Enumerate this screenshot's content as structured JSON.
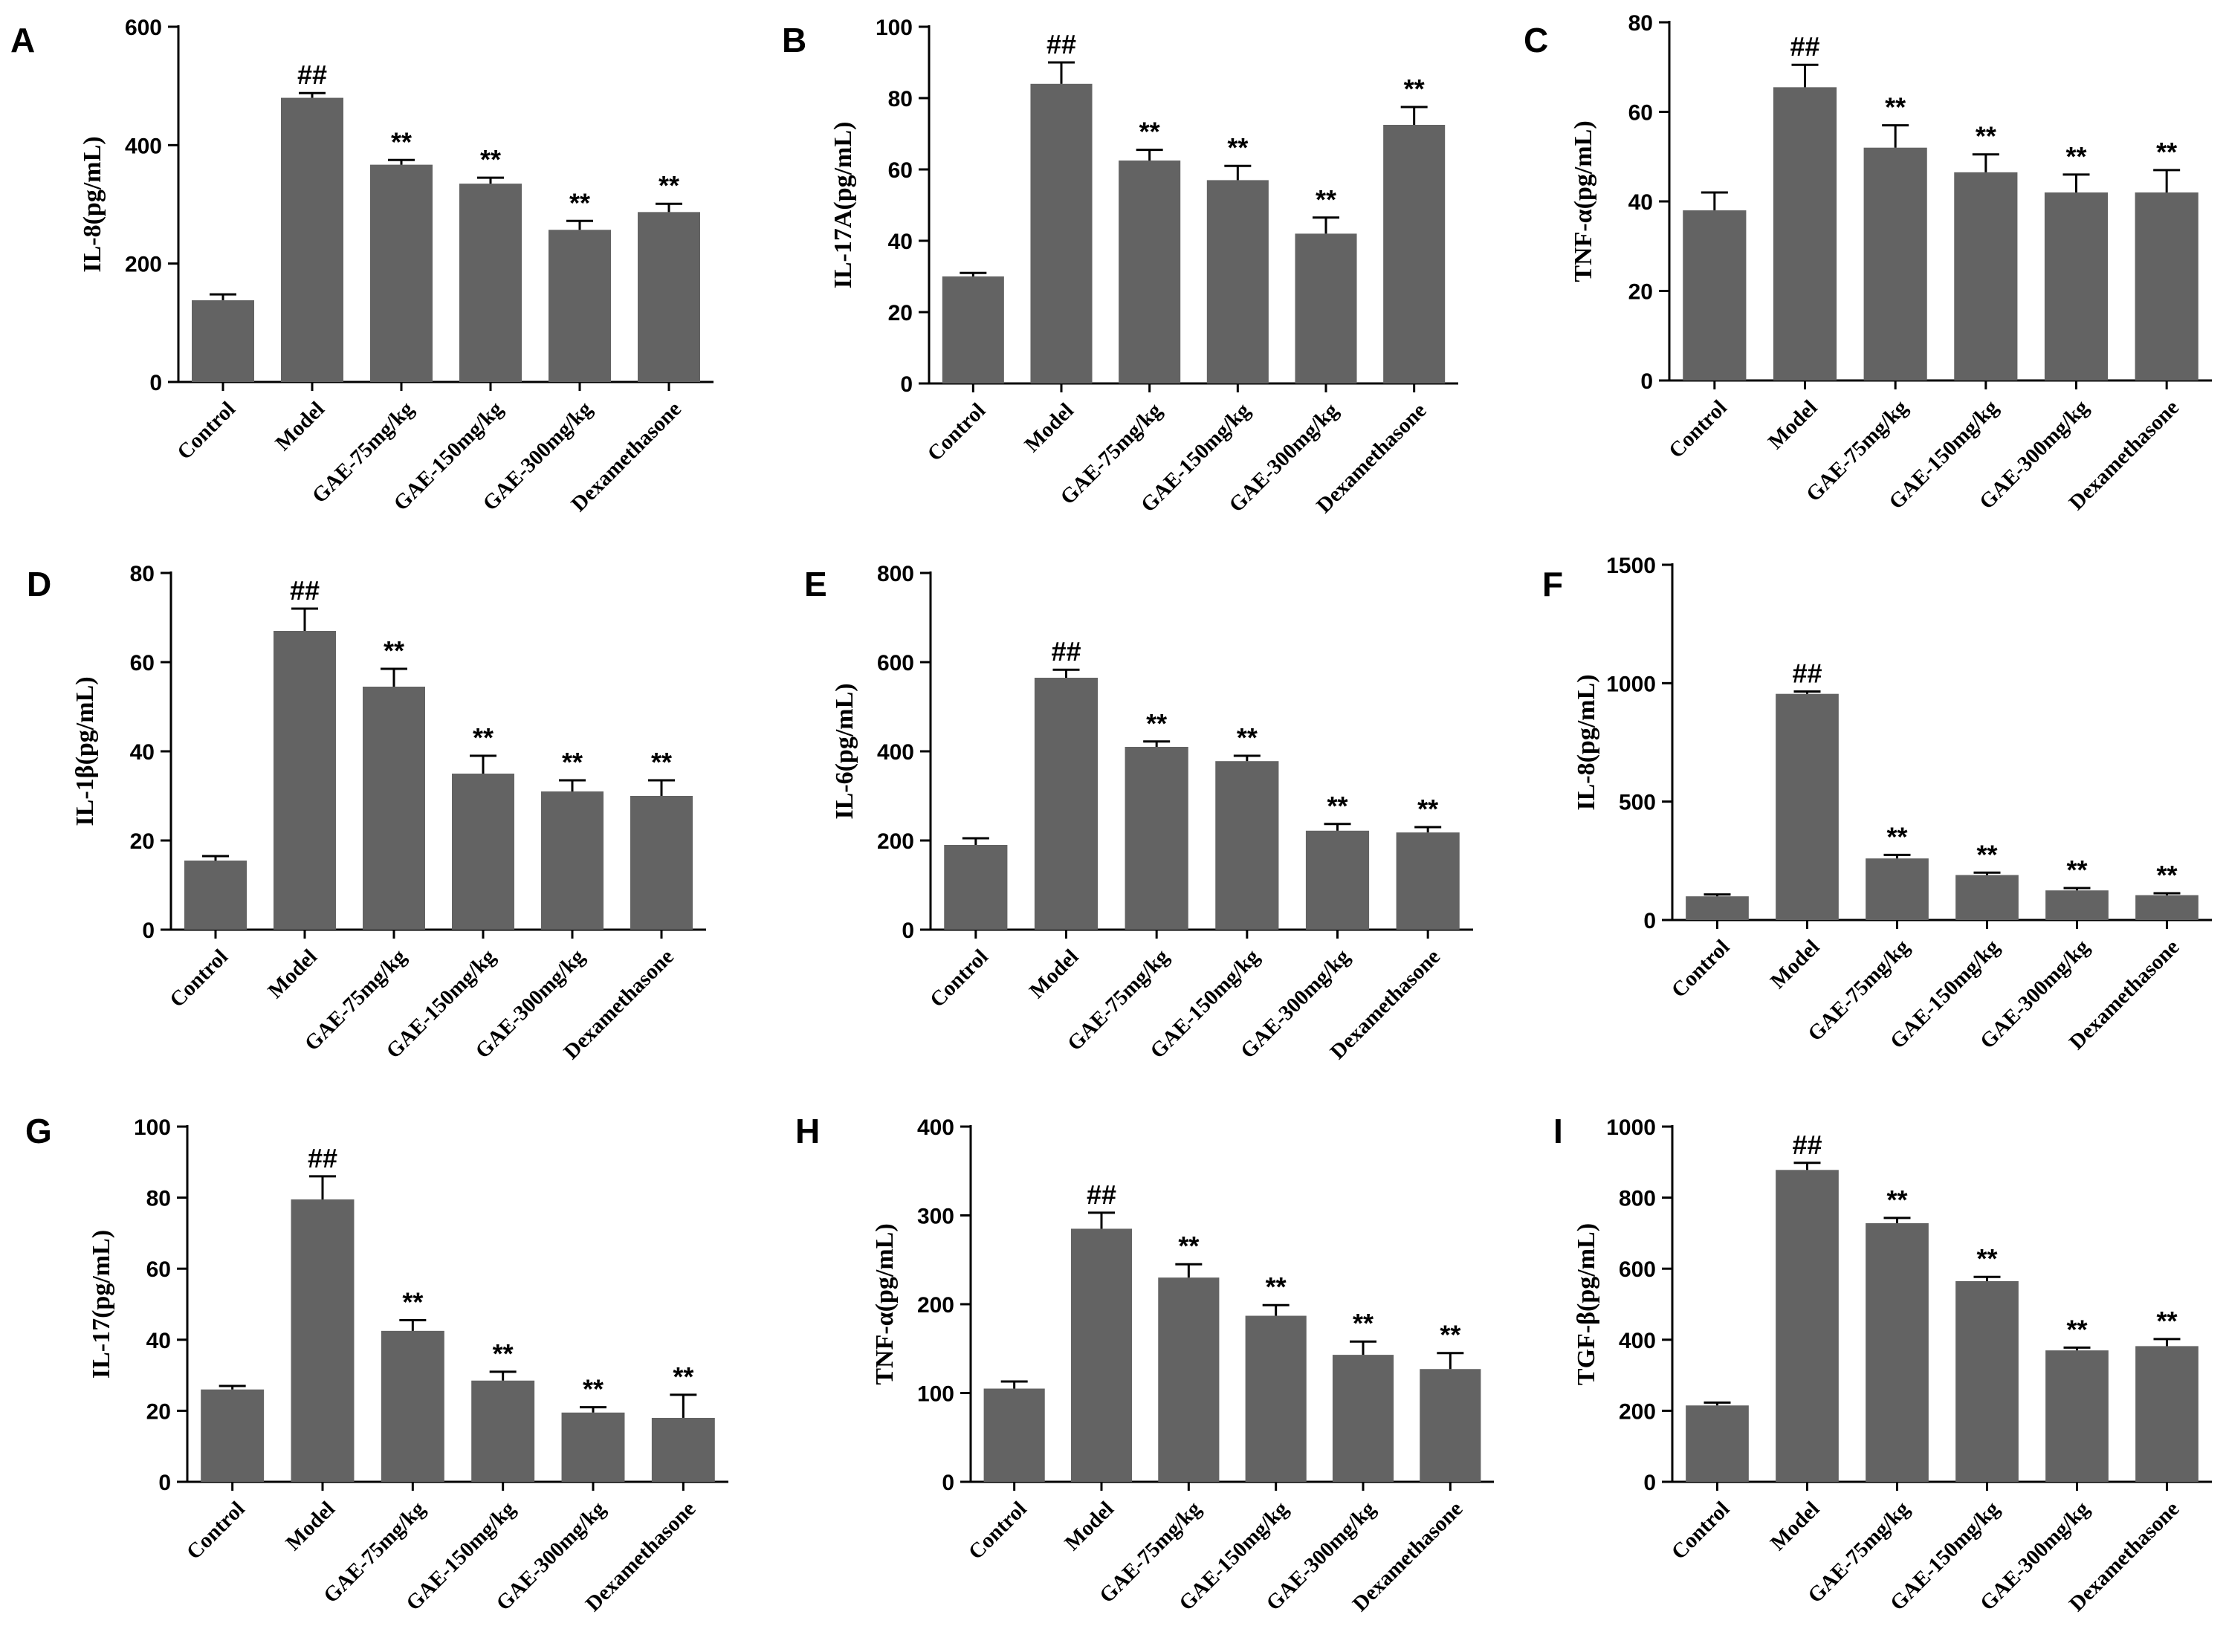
{
  "chart_data": [
    {
      "type": "bar",
      "panel": "A",
      "ylabel": "IL-8(pg/mL)",
      "ylim": [
        0,
        600
      ],
      "yticks": [
        "0",
        "200",
        "400",
        "600"
      ],
      "categories": [
        "Control",
        "Model",
        "GAE-75mg/kg",
        "GAE-150mg/kg",
        "GAE-300mg/kg",
        "Dexamethasone"
      ],
      "values": [
        138,
        480,
        367,
        335,
        257,
        287
      ],
      "errors": [
        10,
        8,
        8,
        10,
        15,
        14
      ],
      "annotations": [
        "",
        "##",
        "**",
        "**",
        "**",
        "**"
      ]
    },
    {
      "type": "bar",
      "panel": "B",
      "ylabel": "IL-17A(pg/mL)",
      "ylim": [
        0,
        100
      ],
      "yticks": [
        "0",
        "20",
        "40",
        "60",
        "80",
        "100"
      ],
      "categories": [
        "Control",
        "Model",
        "GAE-75mg/kg",
        "GAE-150mg/kg",
        "GAE-300mg/kg",
        "Dexamethasone"
      ],
      "values": [
        30,
        84,
        62.5,
        57,
        42,
        72.5
      ],
      "errors": [
        1,
        6,
        3,
        4,
        4.5,
        5
      ],
      "annotations": [
        "",
        "##",
        "**",
        "**",
        "**",
        "**"
      ]
    },
    {
      "type": "bar",
      "panel": "C",
      "ylabel": "TNF-α(pg/mL)",
      "ylim": [
        0,
        80
      ],
      "yticks": [
        "0",
        "20",
        "40",
        "60",
        "80"
      ],
      "categories": [
        "Control",
        "Model",
        "GAE-75mg/kg",
        "GAE-150mg/kg",
        "GAE-300mg/kg",
        "Dexamethasone"
      ],
      "values": [
        38,
        65.5,
        52,
        46.5,
        42,
        42
      ],
      "errors": [
        4,
        5,
        5,
        4,
        4,
        5
      ],
      "annotations": [
        "",
        "##",
        "**",
        "**",
        "**",
        "**"
      ]
    },
    {
      "type": "bar",
      "panel": "D",
      "ylabel": "IL-1β(pg/mL)",
      "ylim": [
        0,
        80
      ],
      "yticks": [
        "0",
        "20",
        "40",
        "60",
        "80"
      ],
      "categories": [
        "Control",
        "Model",
        "GAE-75mg/kg",
        "GAE-150mg/kg",
        "GAE-300mg/kg",
        "Dexamethasone"
      ],
      "values": [
        15.5,
        67,
        54.5,
        35,
        31,
        30
      ],
      "errors": [
        1,
        5,
        4,
        4,
        2.5,
        3.5
      ],
      "annotations": [
        "",
        "##",
        "**",
        "**",
        "**",
        "**"
      ]
    },
    {
      "type": "bar",
      "panel": "E",
      "ylabel": "IL-6(pg/mL)",
      "ylim": [
        0,
        800
      ],
      "yticks": [
        "0",
        "200",
        "400",
        "600",
        "800"
      ],
      "categories": [
        "Control",
        "Model",
        "GAE-75mg/kg",
        "GAE-150mg/kg",
        "GAE-300mg/kg",
        "Dexamethasone"
      ],
      "values": [
        190,
        565,
        410,
        378,
        222,
        218
      ],
      "errors": [
        15,
        18,
        12,
        12,
        15,
        12
      ],
      "annotations": [
        "",
        "##",
        "**",
        "**",
        "**",
        "**"
      ]
    },
    {
      "type": "bar",
      "panel": "F",
      "ylabel": "IL-8(pg/mL)",
      "ylim": [
        0,
        1500
      ],
      "yticks": [
        "0",
        "500",
        "1000",
        "1500"
      ],
      "categories": [
        "Control",
        "Model",
        "GAE-75mg/kg",
        "GAE-150mg/kg",
        "GAE-300mg/kg",
        "Dexamethasone"
      ],
      "values": [
        100,
        955,
        260,
        190,
        125,
        105
      ],
      "errors": [
        8,
        10,
        15,
        10,
        10,
        8
      ],
      "annotations": [
        "",
        "##",
        "**",
        "**",
        "**",
        "**"
      ]
    },
    {
      "type": "bar",
      "panel": "G",
      "ylabel": "IL-17(pg/mL)",
      "ylim": [
        0,
        100
      ],
      "yticks": [
        "0",
        "20",
        "40",
        "60",
        "80",
        "100"
      ],
      "categories": [
        "Control",
        "Model",
        "GAE-75mg/kg",
        "GAE-150mg/kg",
        "GAE-300mg/kg",
        "Dexamethasone"
      ],
      "values": [
        26,
        79.5,
        42.5,
        28.5,
        19.5,
        18
      ],
      "errors": [
        1,
        6.5,
        3,
        2.5,
        1.5,
        6.5
      ],
      "annotations": [
        "",
        "##",
        "**",
        "**",
        "**",
        "**"
      ]
    },
    {
      "type": "bar",
      "panel": "H",
      "ylabel": "TNF-α(pg/mL)",
      "ylim": [
        0,
        400
      ],
      "yticks": [
        "0",
        "100",
        "200",
        "300",
        "400"
      ],
      "categories": [
        "Control",
        "Model",
        "GAE-75mg/kg",
        "GAE-150mg/kg",
        "GAE-300mg/kg",
        "Dexamethasone"
      ],
      "values": [
        105,
        285,
        230,
        187,
        143,
        127
      ],
      "errors": [
        8,
        18,
        15,
        12,
        15,
        18
      ],
      "annotations": [
        "",
        "##",
        "**",
        "**",
        "**",
        "**"
      ]
    },
    {
      "type": "bar",
      "panel": "I",
      "ylabel": "TGF-β(pg/mL)",
      "ylim": [
        0,
        1000
      ],
      "yticks": [
        "0",
        "200",
        "400",
        "600",
        "800",
        "1000"
      ],
      "categories": [
        "Control",
        "Model",
        "GAE-75mg/kg",
        "GAE-150mg/kg",
        "GAE-300mg/kg",
        "Dexamethasone"
      ],
      "values": [
        215,
        878,
        728,
        565,
        370,
        382
      ],
      "errors": [
        8,
        20,
        15,
        12,
        8,
        20
      ],
      "annotations": [
        "",
        "##",
        "**",
        "**",
        "**",
        "**"
      ]
    }
  ],
  "colors": {
    "bar": "#636363",
    "axis": "#000000"
  }
}
